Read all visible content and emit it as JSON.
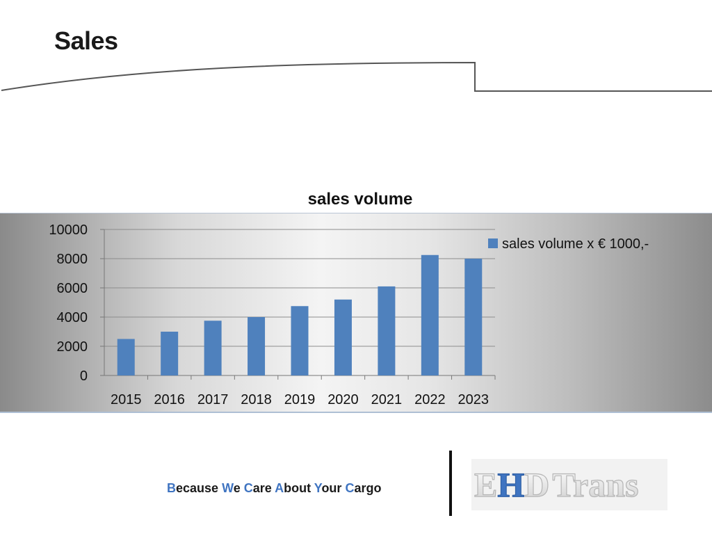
{
  "page": {
    "title": "Sales",
    "tagline_parts": [
      {
        "text": "B",
        "cap": true
      },
      {
        "text": "ecause ",
        "cap": false
      },
      {
        "text": "W",
        "cap": true
      },
      {
        "text": "e ",
        "cap": false
      },
      {
        "text": "C",
        "cap": true
      },
      {
        "text": "are ",
        "cap": false
      },
      {
        "text": "A",
        "cap": true
      },
      {
        "text": "bout ",
        "cap": false
      },
      {
        "text": "Y",
        "cap": true
      },
      {
        "text": "our ",
        "cap": false
      },
      {
        "text": "C",
        "cap": true
      },
      {
        "text": "argo",
        "cap": false
      }
    ],
    "logo_text": "EHDTrans",
    "accent_color": "#3f74c1"
  },
  "chart_data": {
    "type": "bar",
    "title": "sales volume",
    "xlabel": "",
    "ylabel": "",
    "categories": [
      "2015",
      "2016",
      "2017",
      "2018",
      "2019",
      "2020",
      "2021",
      "2022",
      "2023"
    ],
    "series": [
      {
        "name": "sales volume x € 1000,-",
        "color": "#4f81bd",
        "values": [
          2500,
          3000,
          3750,
          4000,
          4750,
          5200,
          6100,
          8250,
          8000
        ]
      }
    ],
    "ylim": [
      0,
      10000
    ],
    "yticks": [
      "0",
      "2000",
      "4000",
      "6000",
      "8000",
      "10000"
    ],
    "grid": true,
    "legend": "right"
  }
}
